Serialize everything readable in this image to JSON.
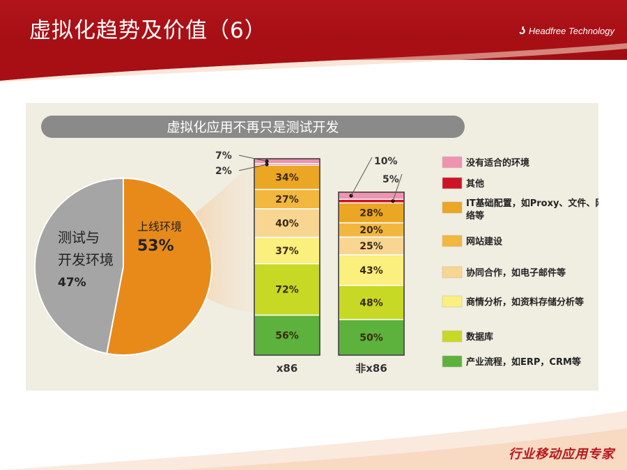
{
  "slide": {
    "title": "虚拟化趋势及价值（6）",
    "brand": "Headfree Technology",
    "brand_mark": "ʖ",
    "footer": "行业移动应用专家"
  },
  "colors": {
    "header_red": "#b1141a",
    "panel_bg": "#f0ede1",
    "pie_gray": "#a5a5a5",
    "pie_orange": "#e88a1a"
  },
  "chart_data": [
    {
      "type": "pie",
      "title": "虚拟化应用不再只是测试开发",
      "slices": [
        {
          "label_line1": "测试与",
          "label_line2": "开发环境",
          "value": 47,
          "value_label": "47%",
          "color": "#a5a5a5"
        },
        {
          "label_line1": "上线环境",
          "label_line2": "",
          "value": 53,
          "value_label": "53%",
          "color": "#e88a1a"
        }
      ]
    },
    {
      "type": "bar",
      "stacked": true,
      "categories": [
        "x86",
        "非x86"
      ],
      "series": [
        {
          "name": "产业流程，如ERP，CRM等",
          "color": "#5cb23c",
          "values": [
            56,
            50
          ]
        },
        {
          "name": "数据库",
          "color": "#c8d925",
          "values": [
            72,
            48
          ]
        },
        {
          "name": "商情分析，如资料存储分析等",
          "color": "#fbef7d",
          "values": [
            37,
            43
          ]
        },
        {
          "name": "协同合作，如电子邮件等",
          "color": "#f9d592",
          "values": [
            40,
            25
          ]
        },
        {
          "name": "网站建设",
          "color": "#f2b73f",
          "values": [
            27,
            20
          ]
        },
        {
          "name": "IT基础配置，如Proxy、文件、网络等",
          "color": "#eba623",
          "values": [
            34,
            28
          ]
        },
        {
          "name": "其他",
          "color": "#cd1427",
          "values": [
            2,
            5
          ]
        },
        {
          "name": "没有适合的环境",
          "color": "#ef93b1",
          "values": [
            7,
            10
          ]
        }
      ]
    }
  ]
}
